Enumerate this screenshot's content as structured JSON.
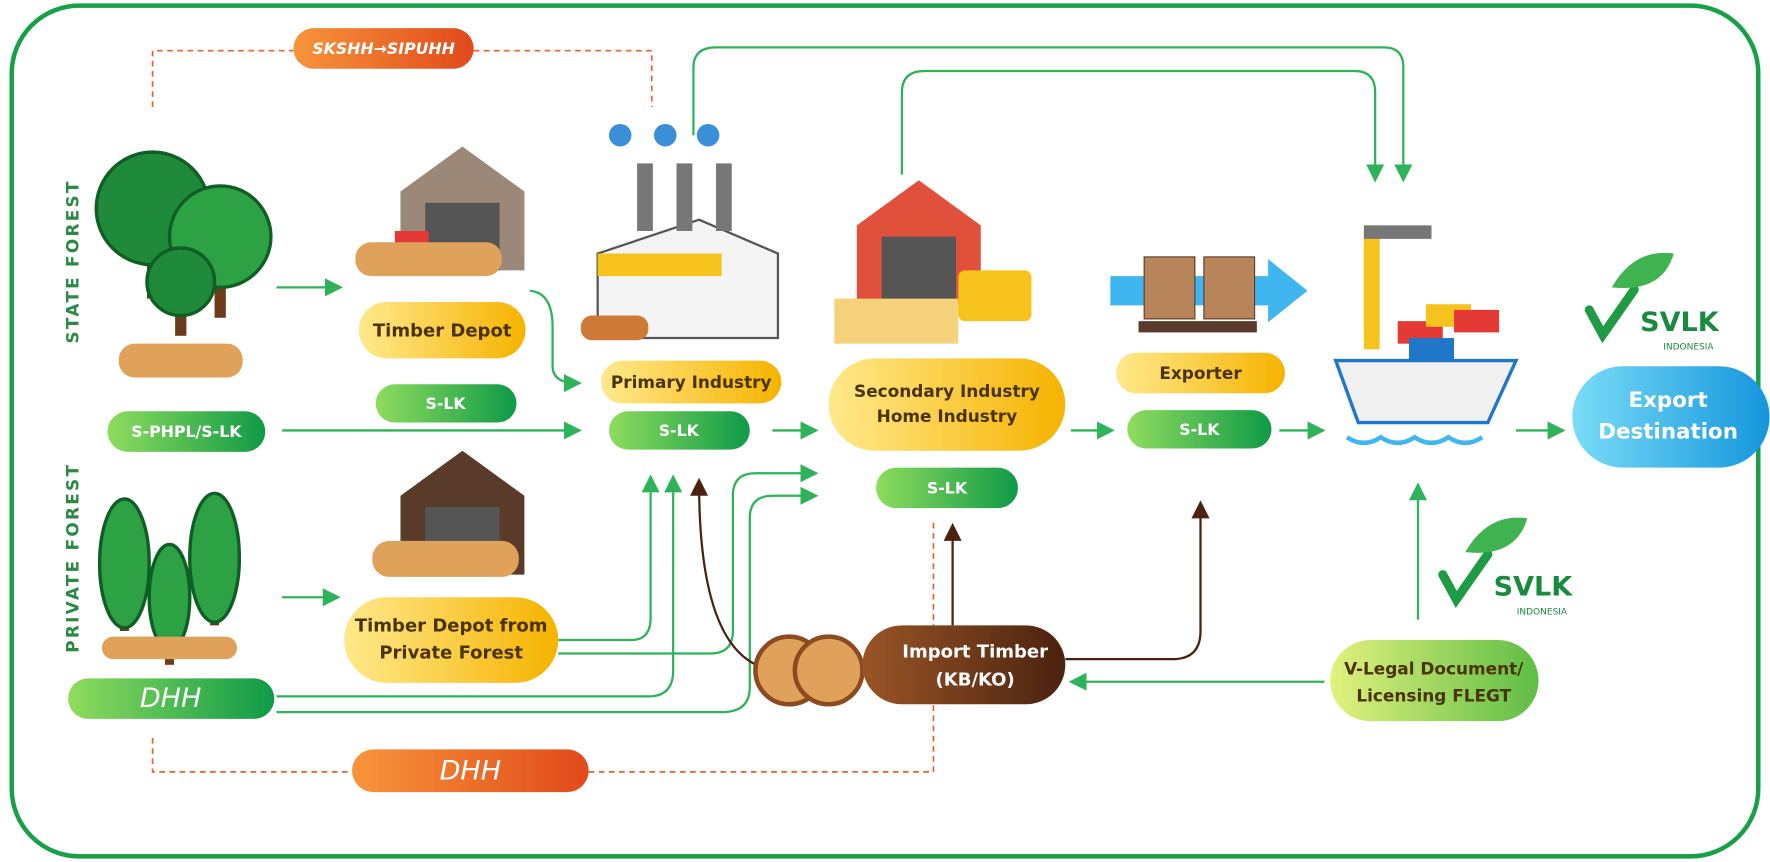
{
  "regions": {
    "state": "STATE FOREST",
    "private": "PRIVATE FOREST"
  },
  "labels": {
    "skshh": "SKSHH→SIPUHH",
    "s_phpl": "S-PHPL/S-LK",
    "dhh_private": "DHH",
    "dhh_bottom": "DHH",
    "timber_depot": "Timber Depot",
    "slk_depot": "S-LK",
    "timber_depot_private": [
      "Timber Depot from",
      "Private Forest"
    ],
    "primary": "Primary Industry",
    "slk_primary": "S-LK",
    "secondary": [
      "Secondary Industry",
      "Home Industry"
    ],
    "slk_secondary": "S-LK",
    "exporter": "Exporter",
    "slk_exporter": "S-LK",
    "export_destination": [
      "Export",
      "Destination"
    ],
    "import_timber": [
      "Import Timber",
      "(KB/KO)"
    ],
    "v_legal": [
      "V-Legal Document/",
      "Licensing FLEGT"
    ]
  },
  "logos": [
    {
      "name": "SVLK",
      "sub": "INDONESIA"
    },
    {
      "name": "SVLK",
      "sub": "INDONESIA"
    }
  ]
}
